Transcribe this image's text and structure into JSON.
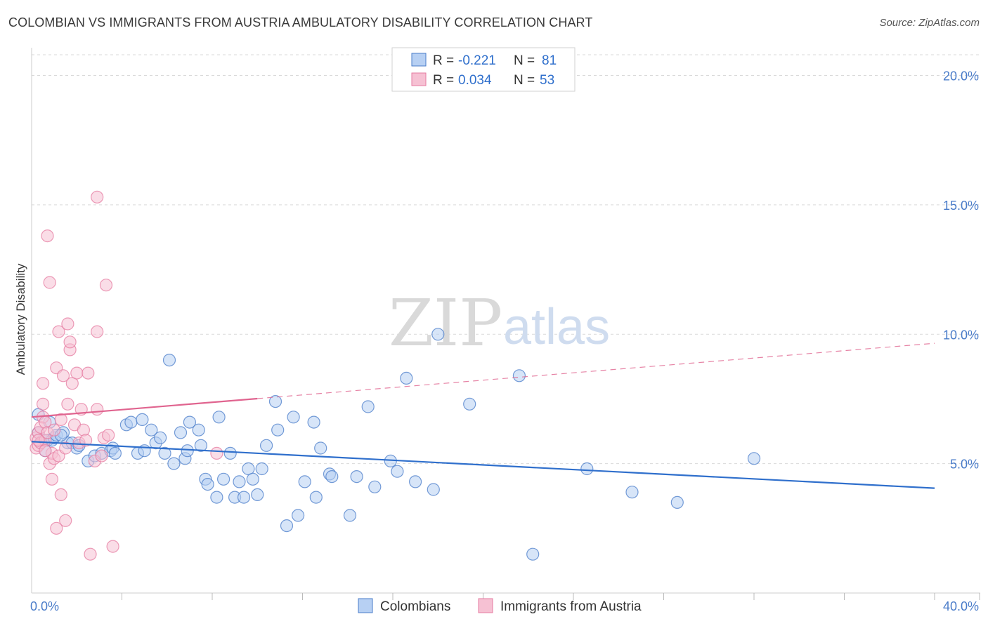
{
  "header": {
    "title": "COLOMBIAN VS IMMIGRANTS FROM AUSTRIA AMBULATORY DISABILITY CORRELATION CHART",
    "source": "Source: ZipAtlas.com"
  },
  "watermark": {
    "zip": "ZIP",
    "atlas": "atlas"
  },
  "colors": {
    "blue": "#4a7cc9",
    "blue_fill": "#b7d0f3",
    "blue_line": "#2f6fcc",
    "pink": "#e67ba0",
    "pink_fill": "#f6c1d3",
    "pink_line": "#e0648f",
    "grid": "#d9d9d9"
  },
  "legend": {
    "items": [
      {
        "r_label": "R =",
        "r_value": "-0.221",
        "n_label": "N =",
        "n_value": "81"
      },
      {
        "r_label": "R =",
        "r_value": "0.034",
        "n_label": "N =",
        "n_value": "53"
      }
    ]
  },
  "bottom_legend": [
    "Colombians",
    "Immigrants from Austria"
  ],
  "chart_data": {
    "type": "scatter",
    "title": "COLOMBIAN VS IMMIGRANTS FROM AUSTRIA AMBULATORY DISABILITY CORRELATION CHART",
    "xlabel": "",
    "ylabel": "Ambulatory Disability",
    "xlim": [
      0,
      40
    ],
    "ylim": [
      0,
      20.8
    ],
    "x_tick_labels": [
      "0.0%",
      "40.0%"
    ],
    "y_ticks": [
      5,
      10,
      15,
      20
    ],
    "y_tick_labels": [
      "5.0%",
      "10.0%",
      "15.0%",
      "20.0%"
    ],
    "grid": true,
    "legend_position": "top-center",
    "series": [
      {
        "name": "Colombians",
        "color": "#4a7cc9",
        "trend": {
          "x": [
            0,
            40
          ],
          "y": [
            5.85,
            4.05
          ],
          "dashed_from": null
        },
        "points": [
          [
            0.3,
            6.9
          ],
          [
            0.3,
            6.2
          ],
          [
            0.4,
            5.8
          ],
          [
            0.5,
            5.9
          ],
          [
            0.6,
            5.5
          ],
          [
            0.7,
            5.9
          ],
          [
            0.8,
            6.6
          ],
          [
            0.9,
            5.9
          ],
          [
            1.0,
            6.0
          ],
          [
            1.1,
            6.1
          ],
          [
            1.4,
            6.2
          ],
          [
            1.6,
            5.8
          ],
          [
            1.8,
            5.8
          ],
          [
            2.0,
            5.6
          ],
          [
            2.5,
            5.1
          ],
          [
            2.8,
            5.3
          ],
          [
            3.1,
            5.4
          ],
          [
            3.5,
            5.5
          ],
          [
            3.6,
            5.6
          ],
          [
            4.2,
            6.5
          ],
          [
            4.4,
            6.6
          ],
          [
            4.7,
            5.4
          ],
          [
            4.9,
            6.7
          ],
          [
            5.0,
            5.5
          ],
          [
            5.3,
            6.3
          ],
          [
            5.5,
            5.8
          ],
          [
            5.7,
            6.0
          ],
          [
            5.9,
            5.4
          ],
          [
            6.1,
            9.0
          ],
          [
            6.3,
            5.0
          ],
          [
            6.6,
            6.2
          ],
          [
            6.8,
            5.2
          ],
          [
            6.9,
            5.5
          ],
          [
            7.0,
            6.6
          ],
          [
            7.4,
            6.3
          ],
          [
            7.5,
            5.7
          ],
          [
            7.7,
            4.4
          ],
          [
            7.8,
            4.2
          ],
          [
            8.2,
            3.7
          ],
          [
            8.3,
            6.8
          ],
          [
            8.5,
            4.4
          ],
          [
            8.8,
            5.4
          ],
          [
            9.0,
            3.7
          ],
          [
            9.2,
            4.3
          ],
          [
            9.4,
            3.7
          ],
          [
            9.6,
            4.8
          ],
          [
            9.8,
            4.4
          ],
          [
            10.0,
            3.8
          ],
          [
            10.2,
            4.8
          ],
          [
            10.4,
            5.7
          ],
          [
            10.8,
            7.4
          ],
          [
            10.9,
            6.3
          ],
          [
            11.3,
            2.6
          ],
          [
            11.6,
            6.8
          ],
          [
            11.8,
            3.0
          ],
          [
            12.1,
            4.3
          ],
          [
            12.5,
            6.6
          ],
          [
            12.6,
            3.7
          ],
          [
            12.8,
            5.6
          ],
          [
            13.2,
            4.6
          ],
          [
            13.3,
            4.5
          ],
          [
            14.1,
            3.0
          ],
          [
            14.4,
            4.5
          ],
          [
            14.9,
            7.2
          ],
          [
            15.2,
            4.1
          ],
          [
            15.9,
            5.1
          ],
          [
            16.2,
            4.7
          ],
          [
            16.6,
            8.3
          ],
          [
            17.0,
            4.3
          ],
          [
            17.8,
            4.0
          ],
          [
            18.0,
            10.0
          ],
          [
            19.4,
            7.3
          ],
          [
            21.6,
            8.4
          ],
          [
            22.2,
            1.5
          ],
          [
            24.6,
            4.8
          ],
          [
            26.6,
            3.9
          ],
          [
            28.6,
            3.5
          ],
          [
            32.0,
            5.2
          ],
          [
            2.1,
            5.7
          ],
          [
            3.7,
            5.4
          ],
          [
            1.3,
            6.1
          ]
        ]
      },
      {
        "name": "Immigrants from Austria",
        "color": "#e67ba0",
        "trend": {
          "x": [
            0,
            40
          ],
          "y": [
            6.8,
            9.65
          ],
          "dashed_from": 10
        },
        "points": [
          [
            0.2,
            5.6
          ],
          [
            0.2,
            6.0
          ],
          [
            0.3,
            5.7
          ],
          [
            0.3,
            6.2
          ],
          [
            0.4,
            6.4
          ],
          [
            0.4,
            5.8
          ],
          [
            0.5,
            6.8
          ],
          [
            0.5,
            7.3
          ],
          [
            0.5,
            8.1
          ],
          [
            0.6,
            5.9
          ],
          [
            0.6,
            6.6
          ],
          [
            0.7,
            6.2
          ],
          [
            0.7,
            13.8
          ],
          [
            0.8,
            5.0
          ],
          [
            0.8,
            12.0
          ],
          [
            0.9,
            4.4
          ],
          [
            0.9,
            5.4
          ],
          [
            1.0,
            5.2
          ],
          [
            1.0,
            6.3
          ],
          [
            1.1,
            8.7
          ],
          [
            1.2,
            5.3
          ],
          [
            1.2,
            10.1
          ],
          [
            1.3,
            3.8
          ],
          [
            1.3,
            6.7
          ],
          [
            1.4,
            8.4
          ],
          [
            1.5,
            2.8
          ],
          [
            1.5,
            5.6
          ],
          [
            1.6,
            7.3
          ],
          [
            1.6,
            10.4
          ],
          [
            1.7,
            9.4
          ],
          [
            1.7,
            9.7
          ],
          [
            1.8,
            8.1
          ],
          [
            1.9,
            6.5
          ],
          [
            2.0,
            8.5
          ],
          [
            2.1,
            5.8
          ],
          [
            2.2,
            7.1
          ],
          [
            2.3,
            6.3
          ],
          [
            2.4,
            5.9
          ],
          [
            2.5,
            8.5
          ],
          [
            2.6,
            1.5
          ],
          [
            2.8,
            5.1
          ],
          [
            2.9,
            15.3
          ],
          [
            2.9,
            10.1
          ],
          [
            2.9,
            7.1
          ],
          [
            3.1,
            5.3
          ],
          [
            3.2,
            6.0
          ],
          [
            3.3,
            11.9
          ],
          [
            3.4,
            6.1
          ],
          [
            3.6,
            1.8
          ],
          [
            1.1,
            2.5
          ],
          [
            0.6,
            5.5
          ],
          [
            0.3,
            5.9
          ],
          [
            8.2,
            5.4
          ]
        ]
      }
    ]
  }
}
